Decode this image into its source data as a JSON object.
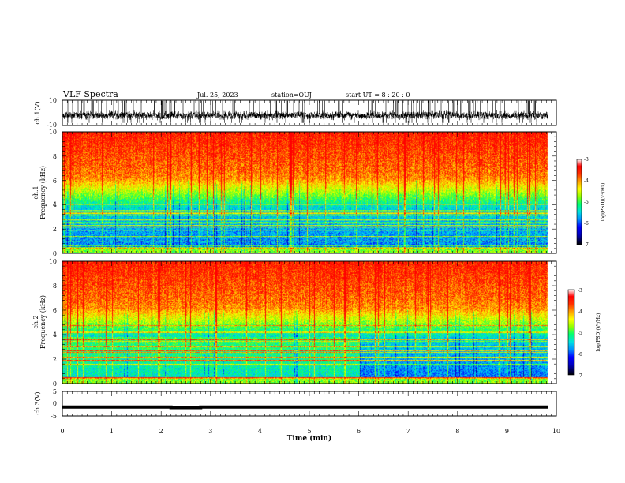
{
  "header": {
    "title": "VLF Spectra",
    "date": "Jul. 25, 2023",
    "station": "station=OUJ",
    "start_ut": "start UT =  8 : 20 : 0"
  },
  "colors": {
    "spectrum": [
      "#000090",
      "#0000ff",
      "#0090ff",
      "#00e0e0",
      "#00ff70",
      "#90ff00",
      "#ffff00",
      "#ffa000",
      "#ff3000",
      "#ff0000"
    ],
    "axis": "#000000"
  },
  "chart_data": [
    {
      "type": "line",
      "name": "ch1-waveform",
      "ylabel": "ch.1(V)",
      "xlim": [
        0,
        10
      ],
      "ylim": [
        -10,
        10
      ],
      "yticks": [
        "10",
        "-10"
      ],
      "data_end_min": 9.83
    },
    {
      "type": "heatmap",
      "name": "ch1-spectrogram",
      "ylabel_top": "ch.1",
      "ylabel": "Frequency (kHz)",
      "xlim": [
        0,
        10
      ],
      "ylim": [
        0,
        10
      ],
      "yticks": [
        "0",
        "2",
        "4",
        "6",
        "8",
        "10"
      ],
      "colorbar": {
        "label": "log(PSD)(V²/Hz)",
        "range": [
          -7,
          -3
        ],
        "ticks": [
          "-3",
          "-4",
          "-5",
          "-6",
          "-7"
        ]
      },
      "data_end_min": 9.83
    },
    {
      "type": "heatmap",
      "name": "ch2-spectrogram",
      "ylabel_top": "ch.2",
      "ylabel": "Frequency (kHz)",
      "xlim": [
        0,
        10
      ],
      "ylim": [
        0,
        10
      ],
      "yticks": [
        "0",
        "2",
        "4",
        "6",
        "8",
        "10"
      ],
      "colorbar": {
        "label": "log(PSD)(V²/Hz)",
        "range": [
          -7,
          -3
        ],
        "ticks": [
          "-3",
          "-4",
          "-5",
          "-6",
          "-7"
        ]
      },
      "data_end_min": 9.83
    },
    {
      "type": "line",
      "name": "ch3-waveform",
      "ylabel": "ch.3(V)",
      "xlim": [
        0,
        10
      ],
      "ylim": [
        -5,
        5
      ],
      "yticks": [
        "5",
        "0",
        "-5"
      ],
      "x": [
        0,
        2.2,
        2.2,
        2.8,
        2.8,
        9.83
      ],
      "y": [
        -1.4,
        -1.4,
        -1.6,
        -1.6,
        -1.4,
        -1.4
      ],
      "data_end_min": 9.83
    }
  ],
  "x_axis": {
    "label": "Time (min)",
    "ticks": [
      "0",
      "1",
      "2",
      "3",
      "4",
      "5",
      "6",
      "7",
      "8",
      "9",
      "10"
    ]
  }
}
